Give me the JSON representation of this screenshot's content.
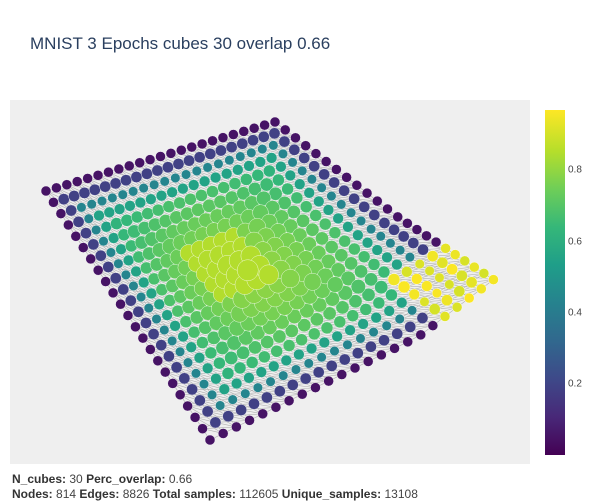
{
  "chart_data": {
    "type": "scatter",
    "title": "MNIST 3 Epochs cubes 30 overlap 0.66",
    "xlabel": "",
    "ylabel": "",
    "grid": false,
    "legend": "none",
    "colorscale": "Viridis",
    "color_range": [
      0.0,
      0.97
    ],
    "colorbar_ticks": [
      "0.2",
      "0.4",
      "0.6",
      "0.8"
    ],
    "colorbar_tick_values": [
      0.2,
      0.4,
      0.6,
      0.8
    ],
    "edge_color": "#b0b0b0",
    "background_color": "#efefef",
    "description_note": "Mapper graph: nodes arranged on a warped lattice, node color = mean value, edges in light grey."
  },
  "footer": {
    "line1": [
      {
        "label": "N_cubes:",
        "value": "30"
      },
      {
        "label": "Perc_overlap:",
        "value": "0.66"
      }
    ],
    "line2": [
      {
        "label": "Nodes:",
        "value": "814"
      },
      {
        "label": "Edges:",
        "value": "8826"
      },
      {
        "label": "Total samples:",
        "value": "112605"
      },
      {
        "label": "Unique_samples:",
        "value": "13108"
      }
    ]
  }
}
